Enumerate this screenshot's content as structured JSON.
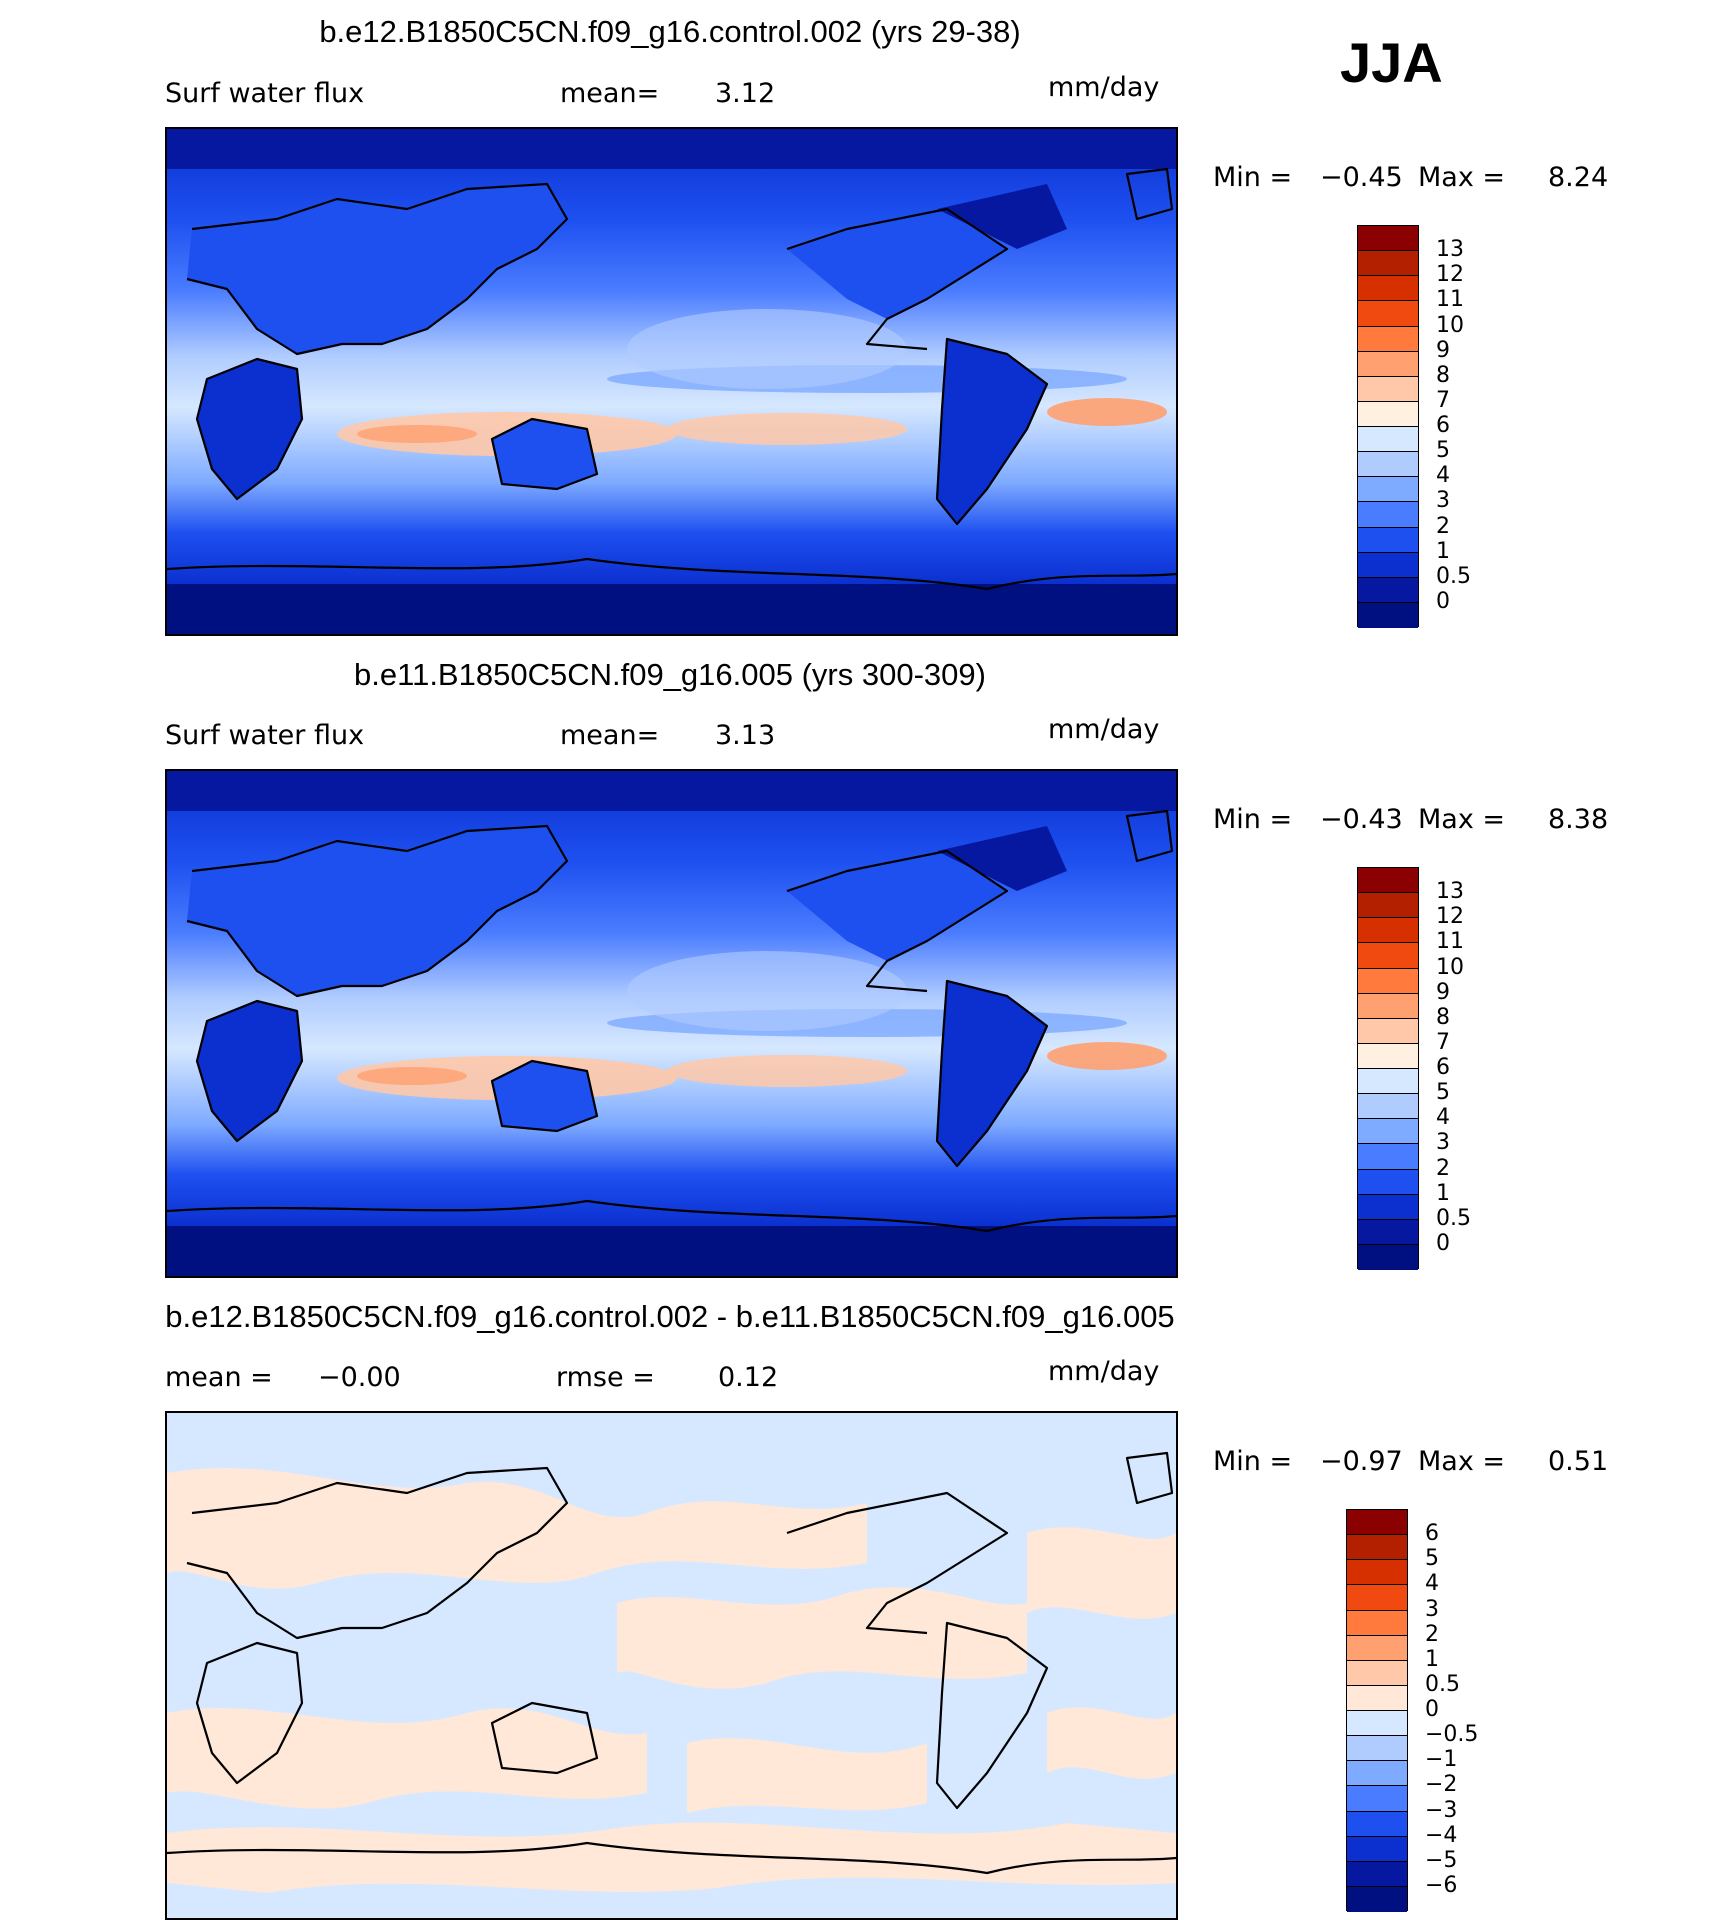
{
  "season": "JJA",
  "panels": [
    {
      "id": "top",
      "title": "b.e12.B1850C5CN.f09_g16.control.002 (yrs 29-38)",
      "left_label": "Surf water flux",
      "mid_label": "mean=",
      "mid_value": "3.12",
      "units": "mm/day",
      "min_label": "Min =",
      "min_value": "−0.45",
      "max_label": "Max =",
      "max_value": "8.24",
      "type": "field",
      "colorbar_ticks": [
        "13",
        "12",
        "11",
        "10",
        "9",
        "8",
        "7",
        "6",
        "5",
        "4",
        "3",
        "2",
        "1",
        "0.5",
        "0"
      ]
    },
    {
      "id": "middle",
      "title": "b.e11.B1850C5CN.f09_g16.005 (yrs 300-309)",
      "left_label": "Surf water flux",
      "mid_label": "mean=",
      "mid_value": "3.13",
      "units": "mm/day",
      "min_label": "Min =",
      "min_value": "−0.43",
      "max_label": "Max =",
      "max_value": "8.38",
      "type": "field",
      "colorbar_ticks": [
        "13",
        "12",
        "11",
        "10",
        "9",
        "8",
        "7",
        "6",
        "5",
        "4",
        "3",
        "2",
        "1",
        "0.5",
        "0"
      ]
    },
    {
      "id": "bottom",
      "title": "b.e12.B1850C5CN.f09_g16.control.002 - b.e11.B1850C5CN.f09_g16.005",
      "left_label": "mean =",
      "left_value": "−0.00",
      "mid_label": "rmse =",
      "mid_value": "0.12",
      "units": "mm/day",
      "min_label": "Min =",
      "min_value": "−0.97",
      "max_label": "Max =",
      "max_value": "0.51",
      "type": "diff",
      "colorbar_ticks": [
        "6",
        "5",
        "4",
        "3",
        "2",
        "1",
        "0.5",
        "0",
        "−0.5",
        "−1",
        "−2",
        "−3",
        "−4",
        "−5",
        "−6"
      ]
    }
  ],
  "colors": {
    "field_scale": [
      "#8b0000",
      "#b22000",
      "#d73000",
      "#f04a10",
      "#ff7a3c",
      "#ffa070",
      "#ffc8a8",
      "#fff0e0",
      "#d6e8ff",
      "#b0ccff",
      "#7eaaff",
      "#4a7cff",
      "#1e50f0",
      "#0c30d0",
      "#0618a0",
      "#001080"
    ],
    "diff_scale": [
      "#8b0000",
      "#b22000",
      "#d73000",
      "#f04a10",
      "#ff7a3c",
      "#ffa070",
      "#ffc8a8",
      "#ffe8d8",
      "#d6e8ff",
      "#b0ccff",
      "#7eaaff",
      "#4a7cff",
      "#1e50f0",
      "#0c30d0",
      "#0618a0",
      "#001080"
    ]
  }
}
